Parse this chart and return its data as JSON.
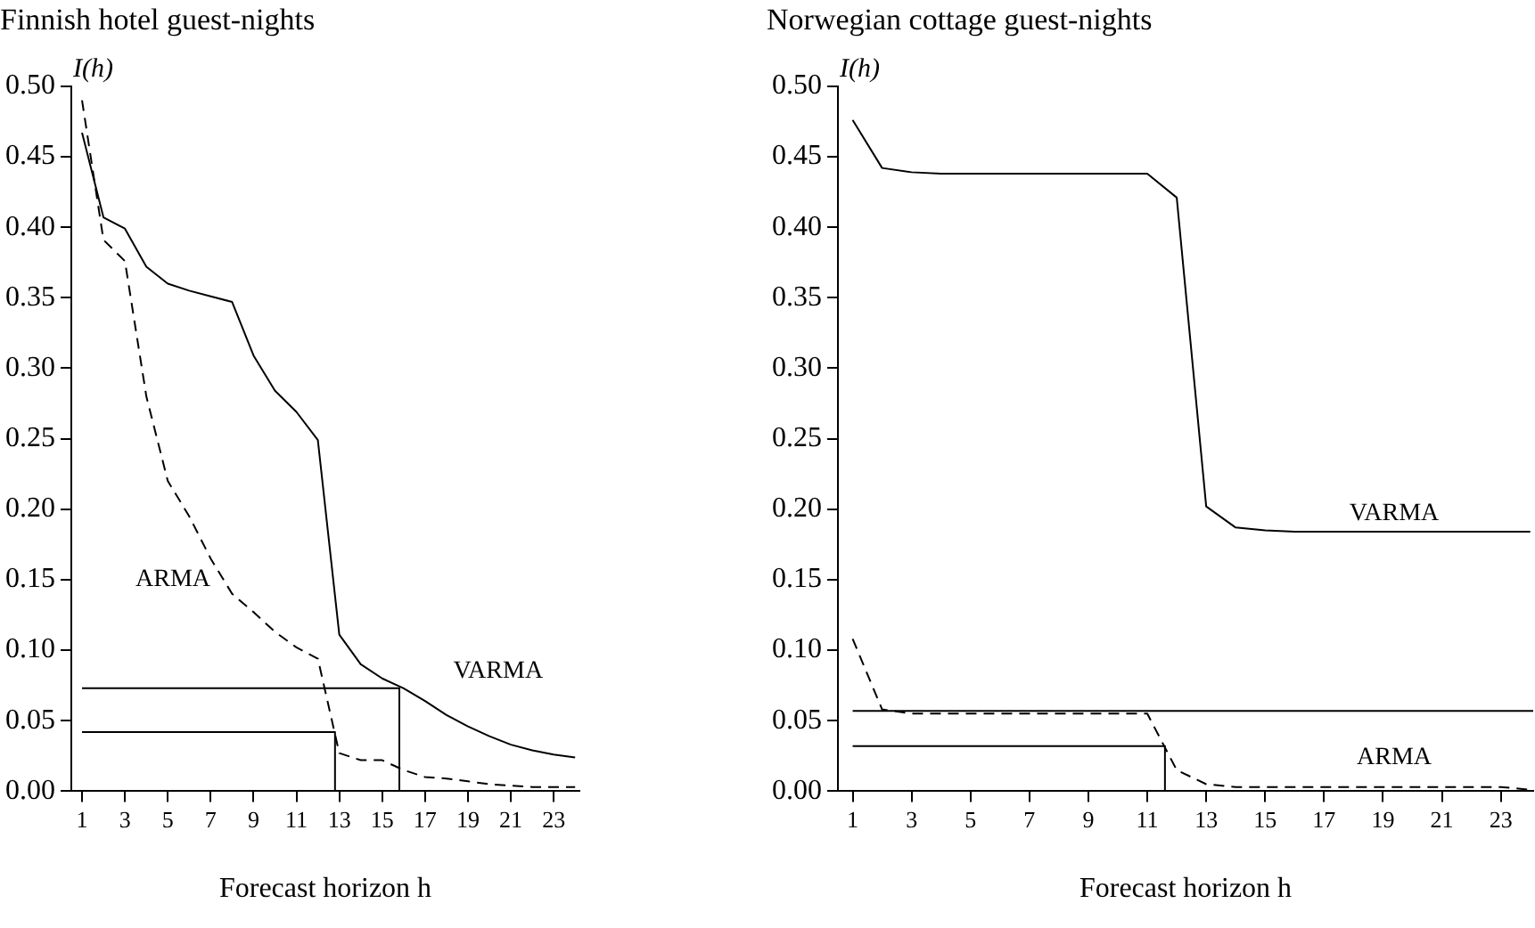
{
  "chart_data": [
    {
      "type": "line",
      "title": "Finnish hotel guest-nights",
      "xlabel": "Forecast horizon h",
      "ylabel": "I(h)",
      "x": [
        1,
        2,
        3,
        4,
        5,
        6,
        7,
        8,
        9,
        10,
        11,
        12,
        13,
        14,
        15,
        16,
        17,
        18,
        19,
        20,
        21,
        22,
        23,
        24
      ],
      "series": [
        {
          "name": "VARMA",
          "color": "#000000",
          "line_style": "solid",
          "values": [
            0.467,
            0.407,
            0.399,
            0.372,
            0.36,
            0.355,
            0.351,
            0.347,
            0.309,
            0.284,
            0.269,
            0.249,
            0.111,
            0.09,
            0.08,
            0.073,
            0.064,
            0.054,
            0.046,
            0.039,
            0.033,
            0.029,
            0.026,
            0.024
          ]
        },
        {
          "name": "ARMA",
          "color": "#000000",
          "line_style": "dashed",
          "values": [
            0.49,
            0.391,
            0.376,
            0.28,
            0.22,
            0.195,
            0.165,
            0.14,
            0.127,
            0.113,
            0.102,
            0.094,
            0.027,
            0.022,
            0.022,
            0.015,
            0.01,
            0.009,
            0.007,
            0.005,
            0.004,
            0.003,
            0.003,
            0.003
          ]
        },
        {
          "color": "#000000",
          "line_style": "solid",
          "x": [
            1,
            15.8,
            15.8
          ],
          "values": [
            0.073,
            0.073,
            0
          ]
        },
        {
          "color": "#000000",
          "line_style": "solid",
          "x": [
            1,
            12.8,
            12.8
          ],
          "values": [
            0.042,
            0.042,
            0
          ]
        }
      ],
      "xlim": [
        0.5,
        24.2
      ],
      "xticks": [
        1,
        3,
        5,
        7,
        9,
        11,
        13,
        15,
        17,
        19,
        21,
        23
      ],
      "ylim": [
        0,
        0.5
      ],
      "yticks": [
        {
          "value": 0,
          "label": "0.00"
        },
        {
          "value": 0.05,
          "label": "0.05"
        },
        {
          "value": 0.1,
          "label": "0.10"
        },
        {
          "value": 0.15,
          "label": "0.15"
        },
        {
          "value": 0.2,
          "label": "0.20"
        },
        {
          "value": 0.25,
          "label": "0.25"
        },
        {
          "value": 0.3,
          "label": "0.30"
        },
        {
          "value": 0.35,
          "label": "0.35"
        },
        {
          "value": 0.4,
          "label": "0.40"
        },
        {
          "value": 0.45,
          "label": "0.45"
        },
        {
          "value": 0.5,
          "label": "0.50"
        }
      ],
      "grid": false,
      "legend": false,
      "marker": "none"
    },
    {
      "type": "line",
      "title": "Norwegian cottage guest-nights",
      "xlabel": "Forecast horizon h",
      "ylabel": "I(h)",
      "x": [
        1,
        2,
        3,
        4,
        5,
        6,
        7,
        8,
        9,
        10,
        11,
        12,
        13,
        14,
        15,
        16,
        17,
        18,
        19,
        20,
        21,
        22,
        23,
        24
      ],
      "series": [
        {
          "name": "VARMA",
          "color": "#000000",
          "line_style": "solid",
          "values": [
            0.476,
            0.442,
            0.439,
            0.438,
            0.438,
            0.438,
            0.438,
            0.438,
            0.438,
            0.438,
            0.438,
            0.421,
            0.202,
            0.187,
            0.185,
            0.184,
            0.184,
            0.184,
            0.184,
            0.184,
            0.184,
            0.184,
            0.184,
            0.184
          ]
        },
        {
          "name": "ARMA",
          "color": "#000000",
          "line_style": "dashed",
          "values": [
            0.108,
            0.058,
            0.055,
            0.055,
            0.055,
            0.055,
            0.055,
            0.055,
            0.055,
            0.055,
            0.055,
            0.015,
            0.005,
            0.003,
            0.003,
            0.003,
            0.003,
            0.003,
            0.003,
            0.003,
            0.003,
            0.003,
            0.003,
            0.001
          ]
        },
        {
          "color": "#000000",
          "line_style": "solid",
          "x": [
            1,
            24.1
          ],
          "values": [
            0.057,
            0.057
          ]
        },
        {
          "color": "#000000",
          "line_style": "solid",
          "x": [
            1,
            11.6,
            11.6
          ],
          "values": [
            0.032,
            0.032,
            0
          ]
        }
      ],
      "xlim": [
        0.5,
        24.1
      ],
      "xticks": [
        1,
        3,
        5,
        7,
        9,
        11,
        13,
        15,
        17,
        19,
        21,
        23
      ],
      "ylim": [
        0,
        0.5
      ],
      "yticks": [
        {
          "value": 0,
          "label": "0.00"
        },
        {
          "value": 0.05,
          "label": "0.05"
        },
        {
          "value": 0.1,
          "label": "0.10"
        },
        {
          "value": 0.15,
          "label": "0.15"
        },
        {
          "value": 0.2,
          "label": "0.20"
        },
        {
          "value": 0.25,
          "label": "0.25"
        },
        {
          "value": 0.3,
          "label": "0.30"
        },
        {
          "value": 0.35,
          "label": "0.35"
        },
        {
          "value": 0.4,
          "label": "0.40"
        },
        {
          "value": 0.45,
          "label": "0.45"
        },
        {
          "value": 0.5,
          "label": "0.50"
        }
      ],
      "grid": false,
      "legend": false,
      "marker": "none"
    }
  ]
}
